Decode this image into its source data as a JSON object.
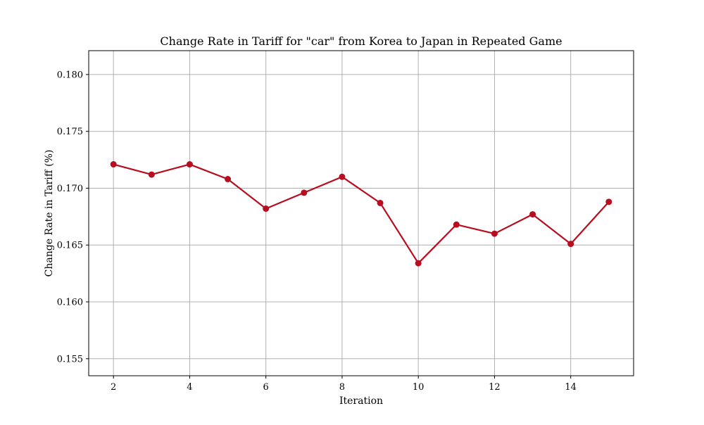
{
  "chart_data": {
    "type": "line",
    "title": "Change Rate in Tariff for \"car\" from Korea to Japan in Repeated Game",
    "xlabel": "Iteration",
    "ylabel": "Change Rate in Tariff (%)",
    "x": [
      2,
      3,
      4,
      5,
      6,
      7,
      8,
      9,
      10,
      11,
      12,
      13,
      14,
      15
    ],
    "series": [
      {
        "values": [
          0.1721,
          0.1712,
          0.1721,
          0.1708,
          0.1682,
          0.1696,
          0.171,
          0.1687,
          0.1634,
          0.1668,
          0.166,
          0.1677,
          0.1651,
          0.1688
        ],
        "color": "#b70d1f"
      }
    ],
    "xlim": [
      1.35,
      15.65
    ],
    "ylim": [
      0.1535,
      0.1821
    ],
    "xticks": [
      2,
      4,
      6,
      8,
      10,
      12,
      14
    ],
    "xtick_labels": [
      "2",
      "4",
      "6",
      "8",
      "10",
      "12",
      "14"
    ],
    "yticks": [
      0.155,
      0.16,
      0.165,
      0.17,
      0.175,
      0.18
    ],
    "ytick_labels": [
      "0.155",
      "0.160",
      "0.165",
      "0.170",
      "0.175",
      "0.180"
    ],
    "grid": true,
    "grid_color": "#b0b0b0",
    "marker": "circle"
  }
}
